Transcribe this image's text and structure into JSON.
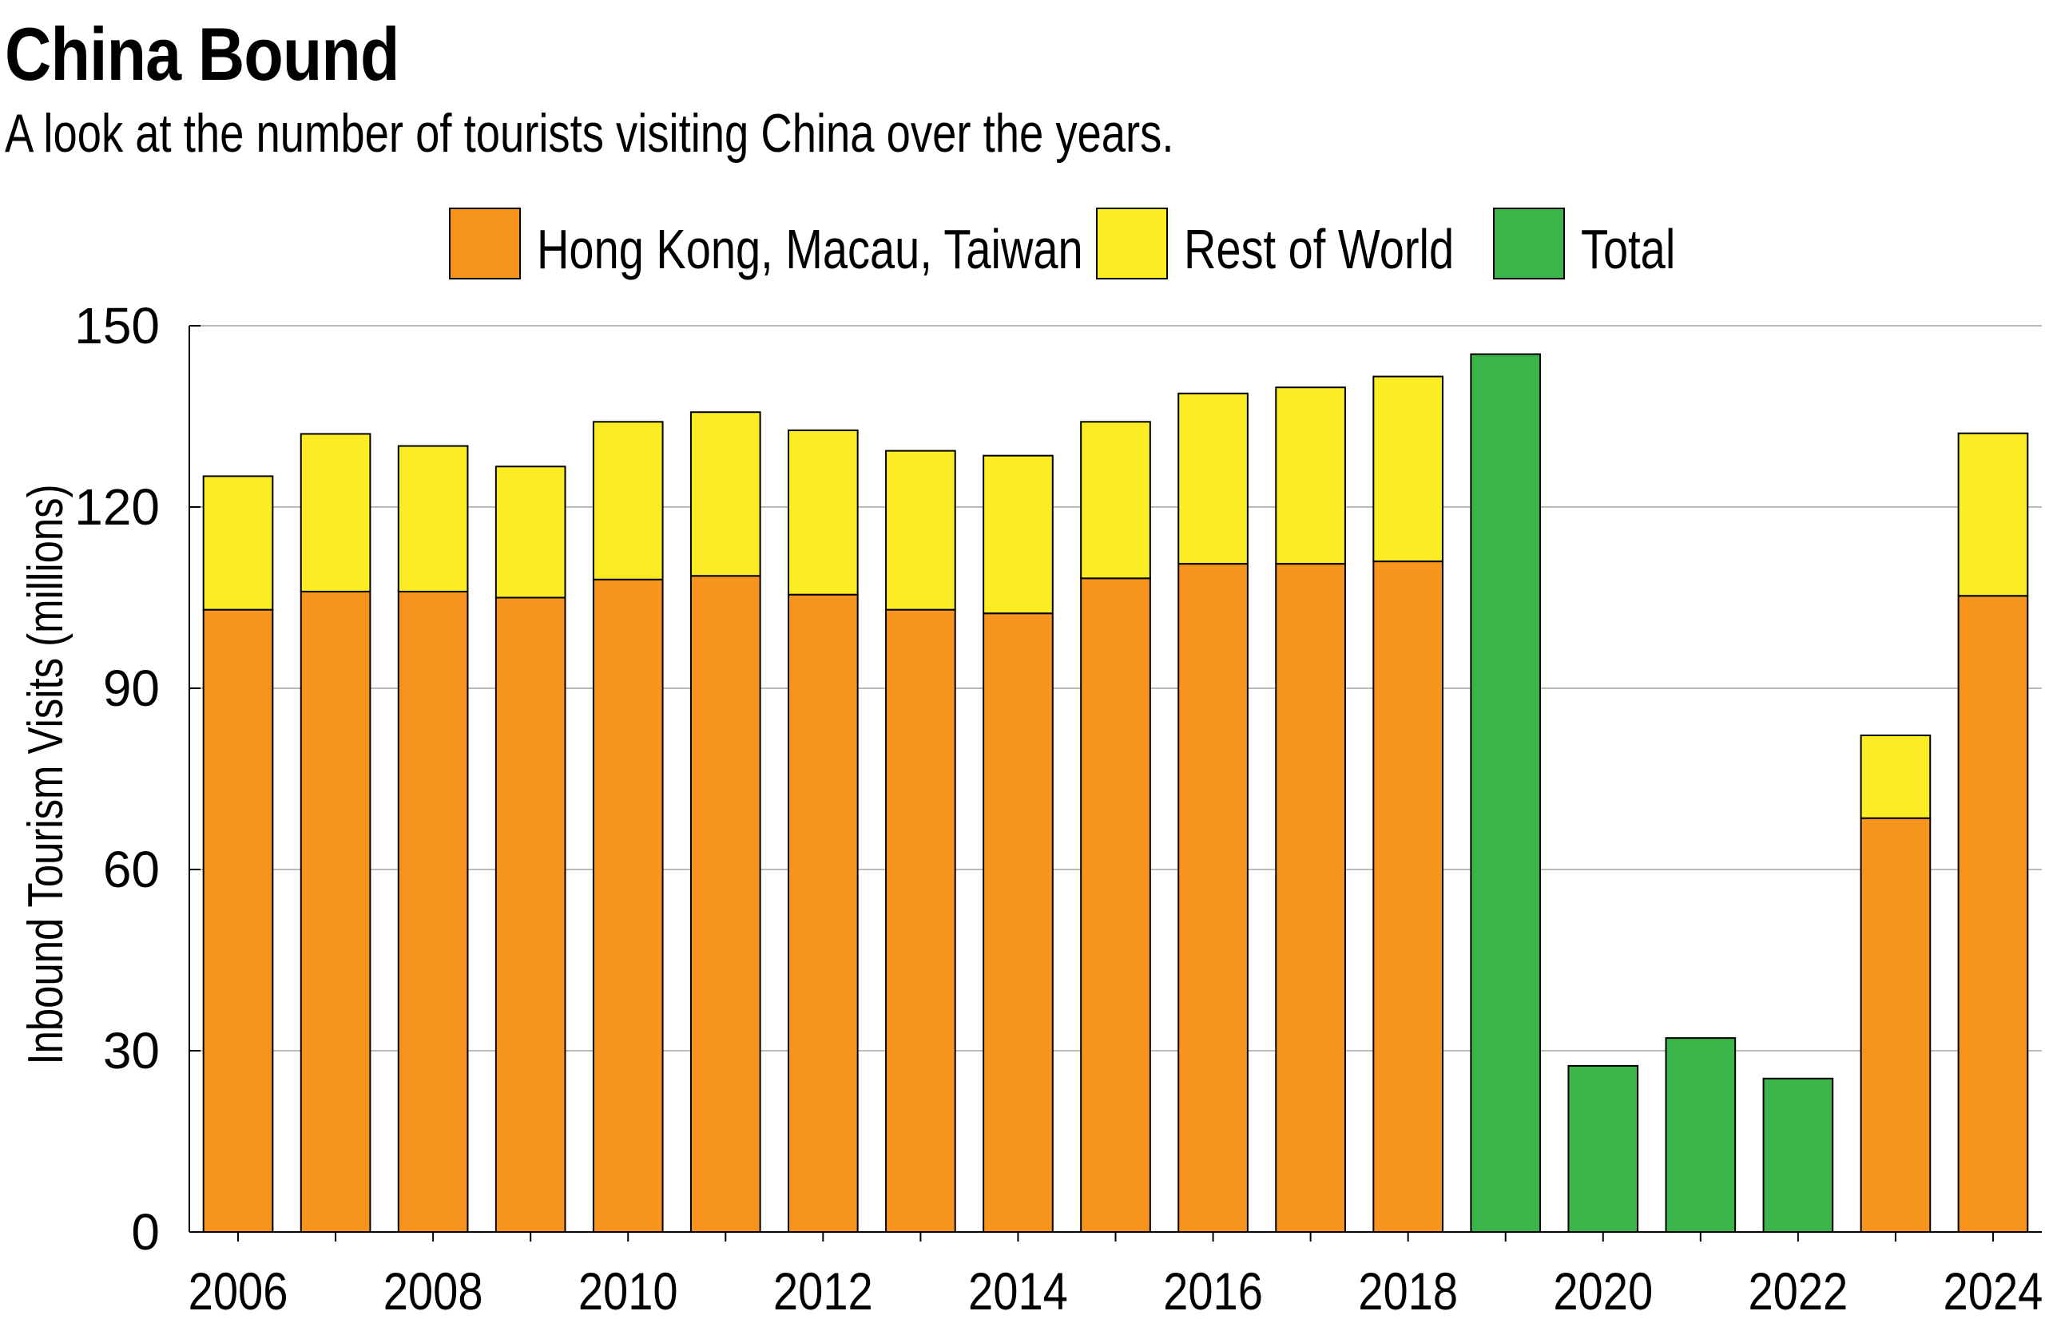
{
  "title": "China Bound",
  "subtitle": "A look at the number of tourists visiting China over the years.",
  "colors": {
    "hk": "#F7941D",
    "row": "#FBEC24",
    "total": "#3BB54A",
    "grid": "#bbbbbb"
  },
  "chart_data": {
    "type": "bar",
    "stacked": true,
    "title": "China Bound",
    "xlabel": "",
    "ylabel": "Inbound Tourism Visits (millions)",
    "ylim": [
      0,
      150
    ],
    "yticks": [
      0,
      30,
      60,
      90,
      120,
      150
    ],
    "xtick_labels": [
      "2006",
      "2008",
      "2010",
      "2012",
      "2014",
      "2016",
      "2018",
      "2020",
      "2022",
      "2024"
    ],
    "categories": [
      "2006",
      "2007",
      "2008",
      "2009",
      "2010",
      "2011",
      "2012",
      "2013",
      "2014",
      "2015",
      "2016",
      "2017",
      "2018",
      "2019",
      "2020",
      "2021",
      "2022",
      "2023",
      "2024"
    ],
    "legend_position": "top",
    "series": [
      {
        "name": "Hong Kong, Macau, Taiwan",
        "color_key": "hk",
        "values": [
          103,
          106,
          106,
          105,
          108,
          108.6,
          105.5,
          103,
          102.4,
          108.2,
          110.6,
          110.6,
          111,
          null,
          null,
          null,
          null,
          68.5,
          105.3
        ]
      },
      {
        "name": "Rest of World",
        "color_key": "row",
        "values": [
          22.1,
          26.1,
          24.1,
          21.7,
          26.1,
          27.1,
          27.2,
          26.3,
          26.1,
          25.9,
          28.2,
          29.2,
          30.6,
          null,
          null,
          null,
          null,
          13.7,
          26.9
        ]
      },
      {
        "name": "Total",
        "color_key": "total",
        "values": [
          null,
          null,
          null,
          null,
          null,
          null,
          null,
          null,
          null,
          null,
          null,
          null,
          null,
          145.3,
          27.5,
          32.1,
          25.4,
          null,
          null
        ]
      }
    ]
  }
}
